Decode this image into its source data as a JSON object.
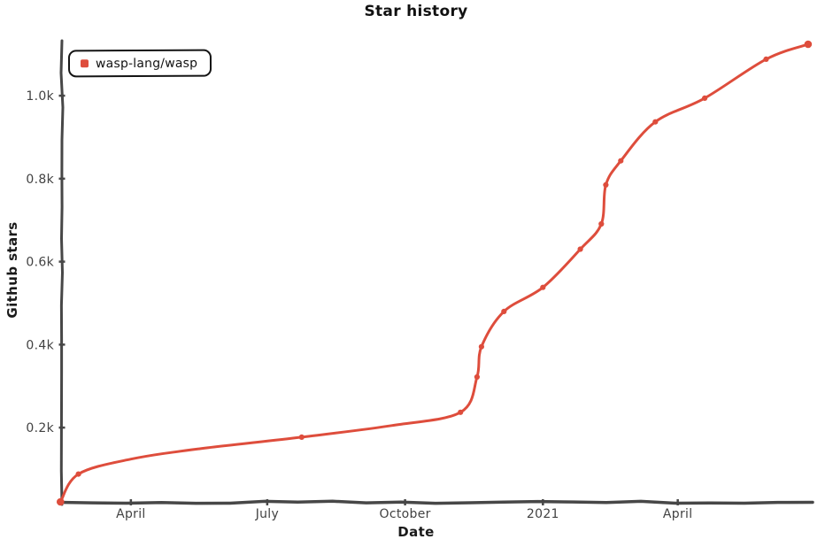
{
  "title": "Star history",
  "legend": {
    "series_label": "wasp-lang/wasp"
  },
  "colors": {
    "series": "#DE4D3C",
    "axis": "#474747",
    "tick_label": "#424242",
    "text": "#111111",
    "background": "#ffffff"
  },
  "chart_data": {
    "type": "line",
    "title": "Star history",
    "xlabel": "Date",
    "ylabel": "Github stars",
    "legend_position": "top-left",
    "grid": false,
    "style": "xkcd-handdrawn",
    "xlim": [
      "2020-02-15",
      "2021-06-30"
    ],
    "ylim": [
      21,
      1124
    ],
    "x_ticks": [
      {
        "date": "2020-04-01",
        "label": "April"
      },
      {
        "date": "2020-07-01",
        "label": "July"
      },
      {
        "date": "2020-10-01",
        "label": "October"
      },
      {
        "date": "2021-01-01",
        "label": "2021"
      },
      {
        "date": "2021-04-01",
        "label": "April"
      }
    ],
    "y_ticks": [
      {
        "value": 200,
        "label": "0.2k"
      },
      {
        "value": 400,
        "label": "0.4k"
      },
      {
        "value": 600,
        "label": "0.6k"
      },
      {
        "value": 800,
        "label": "0.8k"
      },
      {
        "value": 1000,
        "label": "1.0k"
      }
    ],
    "series": [
      {
        "name": "wasp-lang/wasp",
        "color": "#DE4D3C",
        "points": [
          {
            "date": "2020-02-14",
            "stars": 21,
            "marker": true
          },
          {
            "date": "2020-02-26",
            "stars": 88,
            "marker": true
          },
          {
            "date": "2020-04-01",
            "stars": 124,
            "marker": false
          },
          {
            "date": "2020-05-17",
            "stars": 149,
            "marker": false
          },
          {
            "date": "2020-07-24",
            "stars": 177,
            "marker": true
          },
          {
            "date": "2020-09-22",
            "stars": 205,
            "marker": false
          },
          {
            "date": "2020-11-07",
            "stars": 237,
            "marker": true
          },
          {
            "date": "2020-11-18",
            "stars": 322,
            "marker": true
          },
          {
            "date": "2020-11-21",
            "stars": 395,
            "marker": true
          },
          {
            "date": "2020-12-06",
            "stars": 480,
            "marker": true
          },
          {
            "date": "2021-01-01",
            "stars": 538,
            "marker": true
          },
          {
            "date": "2021-01-26",
            "stars": 630,
            "marker": true
          },
          {
            "date": "2021-02-09",
            "stars": 691,
            "marker": true
          },
          {
            "date": "2021-02-12",
            "stars": 785,
            "marker": true
          },
          {
            "date": "2021-02-22",
            "stars": 843,
            "marker": true
          },
          {
            "date": "2021-03-17",
            "stars": 937,
            "marker": true
          },
          {
            "date": "2021-04-19",
            "stars": 994,
            "marker": true
          },
          {
            "date": "2021-05-30",
            "stars": 1088,
            "marker": true
          },
          {
            "date": "2021-06-27",
            "stars": 1124,
            "marker": true
          }
        ]
      }
    ]
  }
}
